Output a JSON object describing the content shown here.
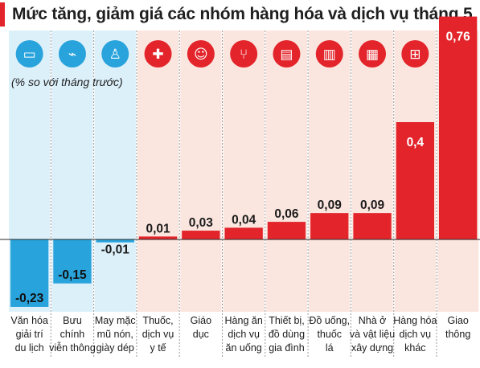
{
  "title": "Mức tăng, giảm giá các nhóm hàng hóa và dịch vụ tháng 5",
  "subtitle": "(% so với tháng trước)",
  "colors": {
    "negative_bar": "#29a3dc",
    "negative_column_bg": "#dcf0fa",
    "positive_bar": "#e3242b",
    "positive_column_bg": "#fbe6df",
    "title_accent": "#e3242b"
  },
  "chart_data": {
    "type": "bar",
    "title": "Mức tăng, giảm giá các nhóm hàng hóa và dịch vụ tháng 5",
    "subtitle": "(% so với tháng trước)",
    "categories": [
      [
        "Văn hóa",
        "giải trí",
        "du lịch"
      ],
      [
        "Bưu",
        "chính",
        "viễn thông"
      ],
      [
        "May mặc",
        "mũ nón,",
        "giày dép"
      ],
      [
        "Thuốc,",
        "dịch vụ",
        "y tế"
      ],
      [
        "Giáo",
        "dục"
      ],
      [
        "Hàng ăn",
        "dịch vụ",
        "ăn uống"
      ],
      [
        "Thiết bị,",
        "đồ dùng",
        "gia đình"
      ],
      [
        "Đồ uống,",
        "thuốc",
        "lá"
      ],
      [
        "Nhà ở",
        "và vật liệu",
        "xây dựng"
      ],
      [
        "Hàng hóa",
        "dịch vụ",
        "khác"
      ],
      [
        "Giao",
        "thông"
      ]
    ],
    "values": [
      -0.23,
      -0.15,
      -0.01,
      0.01,
      0.03,
      0.04,
      0.06,
      0.09,
      0.09,
      0.4,
      0.76
    ],
    "value_labels": [
      "-0,23",
      "-0,15",
      "-0,01",
      "0,01",
      "0,03",
      "0,04",
      "0,06",
      "0,09",
      "0,09",
      "0,4",
      "0,76"
    ],
    "icons": [
      "tv-icon",
      "antenna-icon",
      "clothing-icon",
      "medical-kit-icon",
      "graduate-icon",
      "fork-knife-icon",
      "appliances-icon",
      "drinks-icon",
      "buildings-icon",
      "shopping-cart-icon",
      "traffic-icon"
    ],
    "ylim": [
      -0.25,
      0.8
    ],
    "grid": false,
    "legend": "none"
  }
}
